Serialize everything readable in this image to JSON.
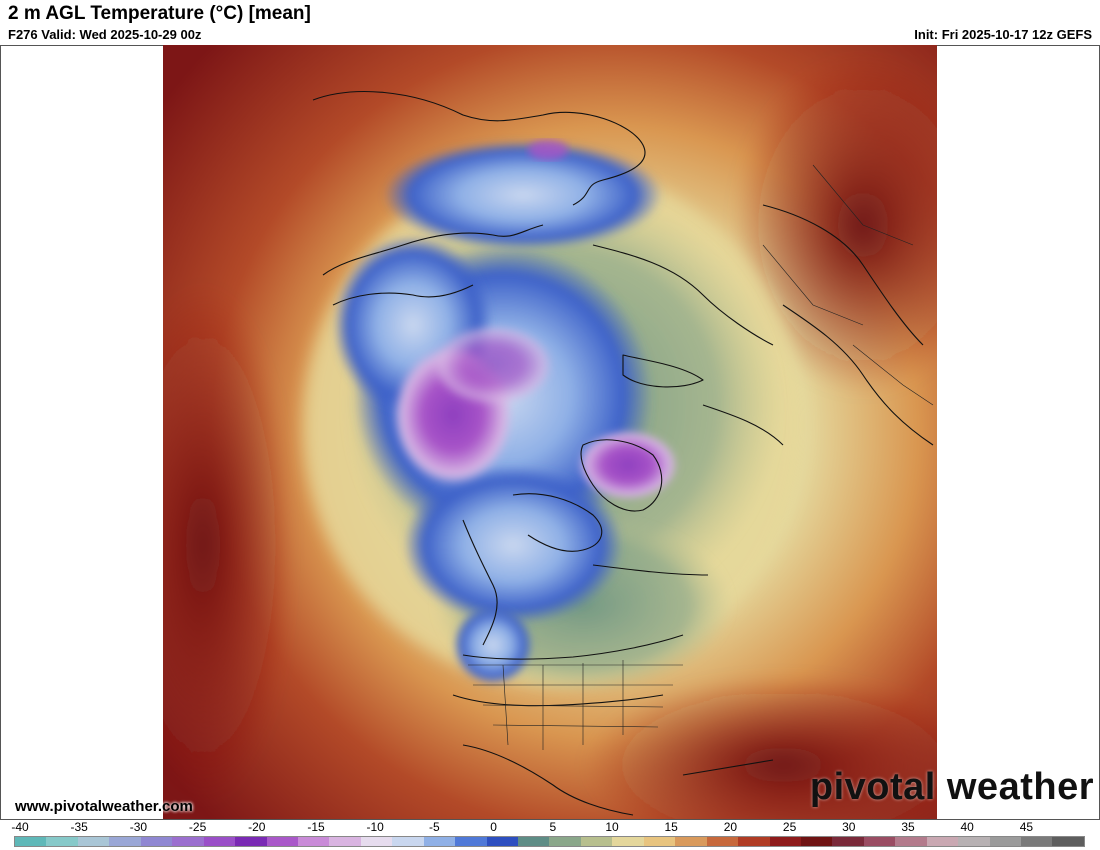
{
  "header": {
    "title": "2 m AGL Temperature (°C) [mean]",
    "valid": "F276 Valid: Wed 2025-10-29 00z",
    "init": "Init: Fri 2025-10-17 12z GEFS"
  },
  "footer": {
    "site_url": "www.pivotalweather.com",
    "logo_text": "pivotal weather"
  },
  "colorbar": {
    "ticks": [
      "-40",
      "-35",
      "-30",
      "-25",
      "-20",
      "-15",
      "-10",
      "-5",
      "0",
      "5",
      "10",
      "15",
      "20",
      "25",
      "30",
      "35",
      "40",
      "45"
    ],
    "stops": [
      "#5fb8b8",
      "#86c9c9",
      "#a9c6d6",
      "#9aa7d6",
      "#8f87d2",
      "#9b6fcf",
      "#9a4fc8",
      "#7a2ab4",
      "#a958c9",
      "#c98bd8",
      "#d9b4e1",
      "#e6dcee",
      "#c9d7ef",
      "#8fb0e6",
      "#4f79d8",
      "#2d4fc0",
      "#5e8d86",
      "#8aa78a",
      "#b7bf8e",
      "#e4d79c",
      "#e8c47f",
      "#d99a5c",
      "#c7693c",
      "#b03c24",
      "#8e1b1b",
      "#6f1313",
      "#7a2a3a",
      "#9a4d63",
      "#b37b8c",
      "#c9a8b2",
      "#b7b1b3",
      "#9b9b9b",
      "#7a7a7a",
      "#5e5e5e"
    ],
    "palette": {
      "deep_warm": "#7d1616",
      "warm": "#a83a22",
      "mild": "#d99650",
      "cool": "#e6d89a",
      "cold_green": "#6f9683",
      "cold_blue": "#3e62c9",
      "frigid_purple": "#a854c8",
      "ice_white": "#e8ecf5"
    }
  }
}
